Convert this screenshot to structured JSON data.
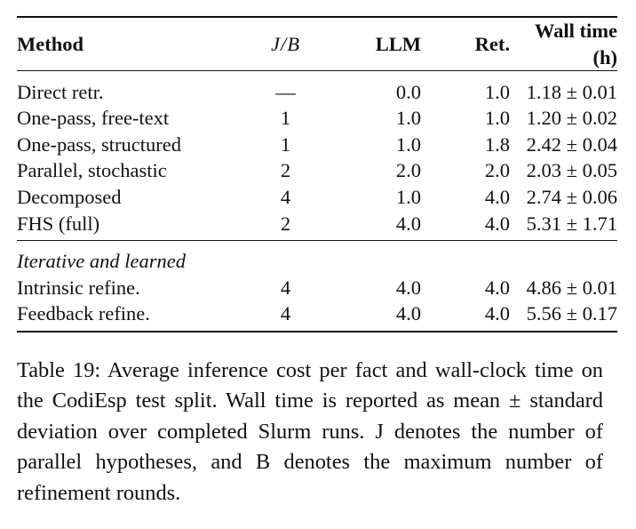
{
  "table": {
    "headers": [
      "Method",
      "J/B",
      "LLM",
      "Ret.",
      "Wall time (h)"
    ],
    "rows": [
      {
        "method": "Direct retr.",
        "jb": "—",
        "llm": "0.0",
        "ret": "1.0",
        "wall": "1.18 ± 0.01"
      },
      {
        "method": "One-pass, free-text",
        "jb": "1",
        "llm": "1.0",
        "ret": "1.0",
        "wall": "1.20 ± 0.02"
      },
      {
        "method": "One-pass, structured",
        "jb": "1",
        "llm": "1.0",
        "ret": "1.8",
        "wall": "2.42 ± 0.04"
      },
      {
        "method": "Parallel, stochastic",
        "jb": "2",
        "llm": "2.0",
        "ret": "2.0",
        "wall": "2.03 ± 0.05"
      },
      {
        "method": "Decomposed",
        "jb": "4",
        "llm": "1.0",
        "ret": "4.0",
        "wall": "2.74 ± 0.06"
      },
      {
        "method": "FHS (full)",
        "jb": "2",
        "llm": "4.0",
        "ret": "4.0",
        "wall": "5.31 ± 1.71"
      }
    ],
    "section_label": "Iterative and learned",
    "section_rows": [
      {
        "method": "Intrinsic refine.",
        "jb": "4",
        "llm": "4.0",
        "ret": "4.0",
        "wall": "4.86 ± 0.01"
      },
      {
        "method": "Feedback refine.",
        "jb": "4",
        "llm": "4.0",
        "ret": "4.0",
        "wall": "5.56 ± 0.17"
      }
    ]
  },
  "caption": "Table 19: Average inference cost per fact and wall-clock time on the CodiEsp test split. Wall time is reported as mean ± standard deviation over completed Slurm runs. J denotes the number of parallel hypotheses, and B denotes the maximum number of refinement rounds."
}
